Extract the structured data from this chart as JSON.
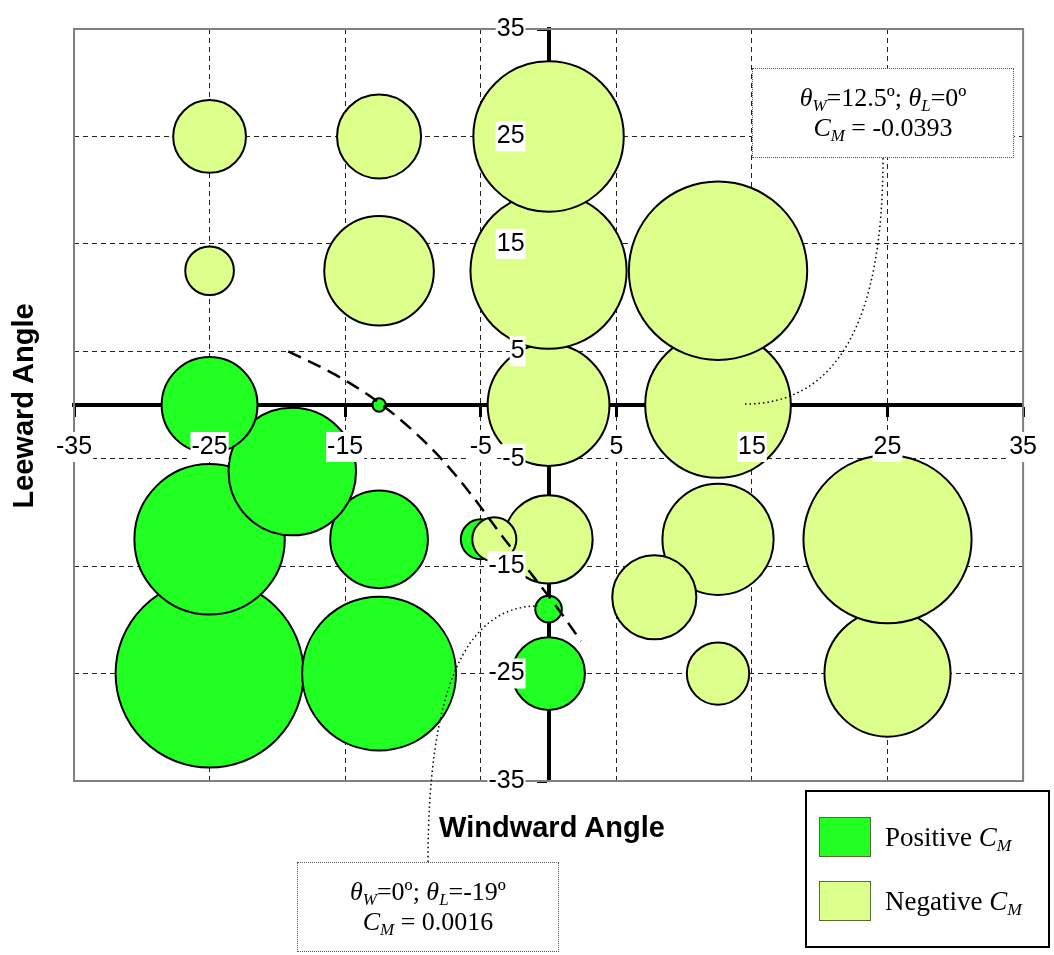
{
  "chart_data": {
    "type": "bubble",
    "xlabel": "Windward Angle",
    "ylabel": "Leeward Angle",
    "xlim": [
      -35,
      35
    ],
    "xticks": [
      -35,
      -25,
      -15,
      -5,
      5,
      15,
      25,
      35
    ],
    "ylim": [
      -35,
      35
    ],
    "yticks": [
      -35,
      -25,
      -15,
      -5,
      5,
      15,
      25,
      35
    ],
    "grid": true,
    "legend": "bottom right",
    "series": [
      {
        "name": "Positive C$_{M}$",
        "color": "#22ff22",
        "x": [
          -25,
          -12.5,
          0,
          0,
          -25,
          -12.5,
          -5,
          -18.9,
          -25,
          -12.5
        ],
        "values": [
          -25,
          -25,
          -25,
          -19,
          -12.5,
          -12.5,
          -12.5,
          -6.2,
          0,
          0
        ],
        "sizes": [
          1,
          0.67,
          0.15,
          0.02,
          0.64,
          0.27,
          0.045,
          0.46,
          0.26,
          0.005
        ]
      },
      {
        "name": "Negative C$_{M}$",
        "color": "#ddff8c",
        "x": [
          12.5,
          25,
          0,
          12.5,
          25,
          7.8,
          -4,
          0,
          12.5,
          -25,
          -12.5,
          0,
          12.5,
          -25,
          -12.5,
          0
        ],
        "values": [
          -25,
          -25,
          -12.5,
          -12.5,
          -12.5,
          -17.9,
          -12.5,
          0,
          0,
          12.5,
          12.5,
          12.5,
          12.5,
          25,
          25,
          25
        ],
        "sizes": [
          0.11,
          0.45,
          0.22,
          0.35,
          0.8,
          0.2,
          0.055,
          0.42,
          0.6,
          0.067,
          0.34,
          0.69,
          0.9,
          0.15,
          0.2,
          0.64
        ]
      },
      {
        "type": "line",
        "color": "#000000",
        "line_style": "dashed",
        "marker": "none",
        "x": [
          -19.2,
          -15.7,
          -12.7,
          -9.9,
          -7.7,
          -5.6,
          -3.6,
          -1.1,
          0.6,
          2.4
        ],
        "values": [
          5.0,
          2.8,
          0.4,
          -2.5,
          -5.3,
          -8.5,
          -11.9,
          -16.0,
          -18.8,
          -22.0
        ]
      }
    ],
    "annotations": [
      "θ$_{W}$=12.5º; θ$_{L}$=0º C$_{M}$ = -0.0393",
      "θ$_{W}$=0º; θ$_{L}$=-19º C$_{M}$ = 0.0016"
    ]
  }
}
